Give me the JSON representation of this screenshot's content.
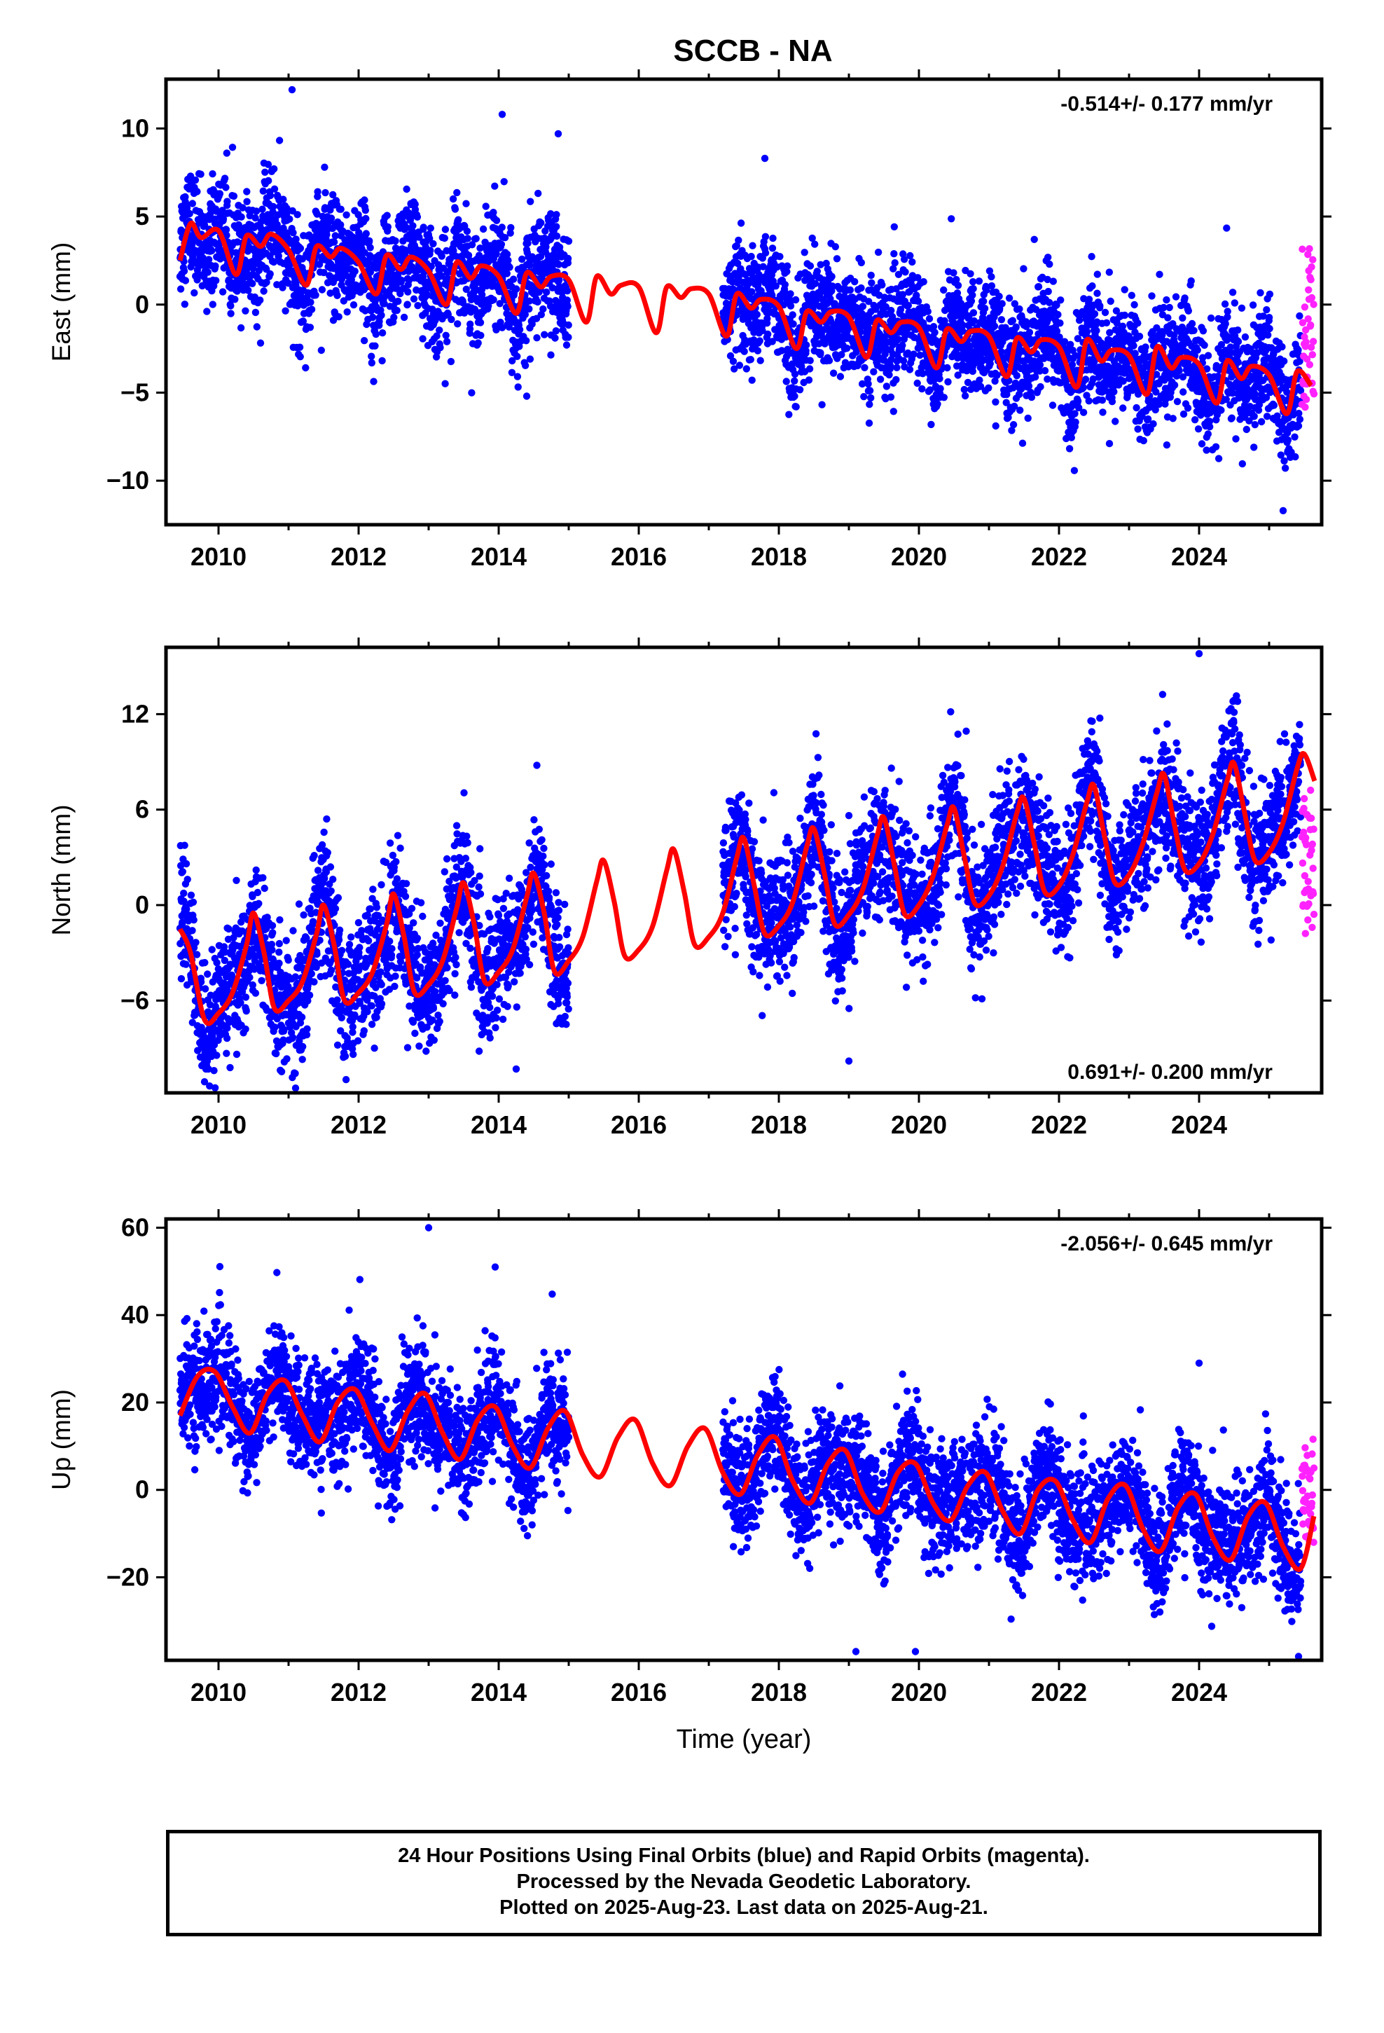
{
  "page": {
    "title": "SCCB - NA"
  },
  "colors": {
    "final_orbits": "#0000ff",
    "rapid_orbits": "#ff22ff",
    "model_fit": "#ff0000",
    "frame": "#000000"
  },
  "xaxis": {
    "label": "Time (year)",
    "ticks": [
      "2010",
      "2012",
      "2014",
      "2016",
      "2018",
      "2020",
      "2022",
      "2024"
    ],
    "range": [
      2009.25,
      2025.75
    ]
  },
  "caption": {
    "line1": "24 Hour Positions Using Final Orbits (blue) and Rapid Orbits (magenta).",
    "line2": "Processed by the Nevada Geodetic Laboratory.",
    "line3": "Plotted on 2025-Aug-23. Last data on 2025-Aug-21."
  },
  "chart_data": [
    {
      "type": "scatter",
      "ylabel": "East (mm)",
      "rate_text": "-0.514+/- 0.177 mm/yr",
      "rate_position": "top-right",
      "ylim": [
        -12.5,
        12.8
      ],
      "yticks": [
        -10,
        -5,
        0,
        5,
        10
      ],
      "gaps": [
        [
          2015.0,
          2017.2
        ]
      ],
      "model": {
        "name": "fit",
        "x": [
          2009.45,
          2009.6,
          2009.75,
          2010.0,
          2010.25,
          2010.4,
          2010.6,
          2010.75,
          2011.0,
          2011.25,
          2011.4,
          2011.6,
          2011.75,
          2012.0,
          2012.25,
          2012.4,
          2012.6,
          2012.75,
          2013.0,
          2013.25,
          2013.4,
          2013.6,
          2013.75,
          2014.0,
          2014.25,
          2014.4,
          2014.6,
          2014.75,
          2015.0,
          2015.25,
          2015.4,
          2015.6,
          2015.75,
          2016.0,
          2016.25,
          2016.4,
          2016.6,
          2016.75,
          2017.0,
          2017.25,
          2017.4,
          2017.6,
          2017.75,
          2018.0,
          2018.25,
          2018.4,
          2018.6,
          2018.75,
          2019.0,
          2019.25,
          2019.4,
          2019.6,
          2019.75,
          2020.0,
          2020.25,
          2020.4,
          2020.6,
          2020.75,
          2021.0,
          2021.25,
          2021.4,
          2021.6,
          2021.75,
          2022.0,
          2022.25,
          2022.4,
          2022.6,
          2022.75,
          2023.0,
          2023.25,
          2023.4,
          2023.6,
          2023.75,
          2024.0,
          2024.25,
          2024.4,
          2024.6,
          2024.75,
          2025.0,
          2025.25,
          2025.4,
          2025.6
        ],
        "y": [
          2.5,
          4.6,
          3.8,
          4.2,
          1.7,
          3.9,
          3.3,
          4.0,
          3.1,
          1.1,
          3.3,
          2.7,
          3.2,
          2.4,
          0.6,
          2.8,
          2.0,
          2.7,
          1.9,
          0.0,
          2.4,
          1.5,
          2.2,
          1.6,
          -0.5,
          1.8,
          1.0,
          1.6,
          1.4,
          -1.0,
          1.6,
          0.6,
          1.1,
          1.0,
          -1.6,
          1.0,
          0.4,
          0.9,
          0.6,
          -1.8,
          0.6,
          -0.2,
          0.3,
          -0.1,
          -2.5,
          -0.4,
          -1.0,
          -0.4,
          -0.7,
          -3.0,
          -0.9,
          -1.6,
          -1.0,
          -1.3,
          -3.6,
          -1.4,
          -2.1,
          -1.5,
          -1.8,
          -4.1,
          -1.9,
          -2.7,
          -2.0,
          -2.4,
          -4.7,
          -2.0,
          -3.2,
          -2.6,
          -2.9,
          -5.1,
          -2.4,
          -3.6,
          -3.0,
          -3.4,
          -5.6,
          -3.2,
          -4.2,
          -3.5,
          -4.0,
          -6.2,
          -3.8,
          -4.6
        ]
      },
      "observations": {
        "name": "daily positions",
        "x_range": [
          2009.45,
          2025.45
        ],
        "trend_mm_per_yr": -0.514,
        "scatter_mm": 1.6,
        "notable": [
          {
            "x": 2011.05,
            "y": 12.2
          },
          {
            "x": 2014.05,
            "y": 10.8
          },
          {
            "x": 2014.85,
            "y": 9.7
          },
          {
            "x": 2017.8,
            "y": 8.3
          },
          {
            "x": 2014.4,
            "y": -5.2
          },
          {
            "x": 2025.2,
            "y": -11.7
          }
        ]
      },
      "rapid": {
        "name": "rapid orbits",
        "x_range": [
          2025.47,
          2025.64
        ],
        "y_range": [
          -6.0,
          3.3
        ]
      }
    },
    {
      "type": "scatter",
      "ylabel": "North (mm)",
      "rate_text": "0.691+/- 0.200 mm/yr",
      "rate_position": "bottom-right",
      "ylim": [
        -11.8,
        16.2
      ],
      "yticks": [
        -6,
        0,
        6,
        12
      ],
      "gaps": [
        [
          2015.0,
          2017.2
        ]
      ],
      "model": {
        "name": "fit",
        "x": [
          2009.45,
          2009.6,
          2009.8,
          2010.0,
          2010.2,
          2010.4,
          2010.5,
          2010.65,
          2010.8,
          2011.0,
          2011.2,
          2011.4,
          2011.5,
          2011.65,
          2011.8,
          2012.0,
          2012.2,
          2012.4,
          2012.5,
          2012.65,
          2012.8,
          2013.0,
          2013.2,
          2013.4,
          2013.5,
          2013.65,
          2013.8,
          2014.0,
          2014.2,
          2014.4,
          2014.5,
          2014.65,
          2014.8,
          2015.0,
          2015.2,
          2015.4,
          2015.5,
          2015.65,
          2015.8,
          2016.0,
          2016.2,
          2016.4,
          2016.5,
          2016.65,
          2016.8,
          2017.0,
          2017.2,
          2017.4,
          2017.5,
          2017.65,
          2017.8,
          2018.0,
          2018.2,
          2018.4,
          2018.5,
          2018.65,
          2018.8,
          2019.0,
          2019.2,
          2019.4,
          2019.5,
          2019.65,
          2019.8,
          2020.0,
          2020.2,
          2020.4,
          2020.5,
          2020.65,
          2020.8,
          2021.0,
          2021.2,
          2021.4,
          2021.5,
          2021.65,
          2021.8,
          2022.0,
          2022.2,
          2022.4,
          2022.5,
          2022.65,
          2022.8,
          2023.0,
          2023.2,
          2023.4,
          2023.5,
          2023.65,
          2023.8,
          2024.0,
          2024.2,
          2024.4,
          2024.5,
          2024.65,
          2024.8,
          2025.0,
          2025.2,
          2025.4,
          2025.5,
          2025.65
        ],
        "y": [
          -1.5,
          -3.0,
          -7.2,
          -6.8,
          -5.5,
          -2.5,
          -0.5,
          -3.0,
          -6.5,
          -6.0,
          -4.8,
          -1.8,
          0.0,
          -2.5,
          -6.0,
          -5.5,
          -4.2,
          -1.2,
          0.7,
          -2.0,
          -5.5,
          -5.0,
          -3.5,
          -0.2,
          1.4,
          -1.2,
          -4.8,
          -4.2,
          -2.8,
          0.5,
          2.0,
          -0.5,
          -4.2,
          -3.5,
          -2.0,
          1.5,
          2.8,
          0.2,
          -3.2,
          -2.8,
          -1.3,
          2.2,
          3.5,
          0.8,
          -2.5,
          -2.0,
          -0.5,
          3.0,
          4.2,
          1.2,
          -1.8,
          -1.3,
          0.2,
          3.7,
          4.8,
          2.0,
          -1.2,
          -0.6,
          1.0,
          4.3,
          5.5,
          2.5,
          -0.6,
          0.0,
          1.8,
          5.0,
          6.1,
          3.0,
          0.1,
          0.6,
          2.5,
          5.8,
          6.7,
          3.8,
          0.8,
          1.2,
          3.2,
          6.5,
          7.5,
          4.3,
          1.4,
          1.9,
          3.9,
          7.1,
          8.2,
          5.0,
          2.2,
          2.6,
          4.5,
          7.8,
          8.9,
          5.8,
          2.8,
          3.3,
          5.2,
          8.6,
          9.5,
          7.8
        ]
      },
      "observations": {
        "name": "daily positions",
        "x_range": [
          2009.45,
          2025.45
        ],
        "trend_mm_per_yr": 0.691,
        "scatter_mm": 2.0,
        "notable": [
          {
            "x": 2024.0,
            "y": 15.8
          },
          {
            "x": 2011.1,
            "y": -11.5
          },
          {
            "x": 2014.25,
            "y": -10.3
          },
          {
            "x": 2019.0,
            "y": -9.8
          },
          {
            "x": 2024.55,
            "y": 12.8
          }
        ]
      },
      "rapid": {
        "name": "rapid orbits",
        "x_range": [
          2025.47,
          2025.64
        ],
        "y_range": [
          -2.0,
          7.4
        ]
      }
    },
    {
      "type": "scatter",
      "ylabel": "Up (mm)",
      "rate_text": "-2.056+/- 0.645 mm/yr",
      "rate_position": "top-right",
      "ylim": [
        -39,
        62
      ],
      "yticks": [
        -20,
        0,
        20,
        40,
        60
      ],
      "gaps": [
        [
          2015.0,
          2017.2
        ]
      ],
      "model": {
        "name": "fit",
        "x": [
          2009.45,
          2009.7,
          2009.95,
          2010.2,
          2010.45,
          2010.7,
          2010.95,
          2011.2,
          2011.45,
          2011.7,
          2011.95,
          2012.2,
          2012.45,
          2012.7,
          2012.95,
          2013.2,
          2013.45,
          2013.7,
          2013.95,
          2014.2,
          2014.45,
          2014.7,
          2014.95,
          2015.2,
          2015.45,
          2015.7,
          2015.95,
          2016.2,
          2016.45,
          2016.7,
          2016.95,
          2017.2,
          2017.45,
          2017.7,
          2017.95,
          2018.2,
          2018.45,
          2018.7,
          2018.95,
          2019.2,
          2019.45,
          2019.7,
          2019.95,
          2020.2,
          2020.45,
          2020.7,
          2020.95,
          2021.2,
          2021.45,
          2021.7,
          2021.95,
          2022.2,
          2022.45,
          2022.7,
          2022.95,
          2023.2,
          2023.45,
          2023.7,
          2023.95,
          2024.2,
          2024.45,
          2024.7,
          2024.95,
          2025.2,
          2025.45,
          2025.64
        ],
        "y": [
          17,
          26,
          27,
          19,
          13,
          22,
          25,
          17,
          11,
          20,
          23,
          15,
          9,
          18,
          22,
          13,
          7,
          16,
          19,
          10,
          5,
          14,
          18,
          8,
          3,
          12,
          16,
          6,
          1,
          10,
          14,
          4,
          -1,
          8,
          12,
          2,
          -3,
          6,
          9,
          -1,
          -5,
          4,
          6,
          -3,
          -7,
          1,
          4,
          -5,
          -10,
          0,
          2,
          -7,
          -12,
          -2,
          1,
          -9,
          -14,
          -4,
          -1,
          -11,
          -16,
          -6,
          -3,
          -13,
          -18,
          -6
        ]
      },
      "observations": {
        "name": "daily positions",
        "x_range": [
          2009.45,
          2025.45
        ],
        "trend_mm_per_yr": -2.056,
        "scatter_mm": 6.5,
        "notable": [
          {
            "x": 2013.0,
            "y": 60
          },
          {
            "x": 2013.95,
            "y": 51
          },
          {
            "x": 2019.1,
            "y": -37
          },
          {
            "x": 2019.95,
            "y": -37
          },
          {
            "x": 2024.0,
            "y": 29
          }
        ]
      },
      "rapid": {
        "name": "rapid orbits",
        "x_range": [
          2025.47,
          2025.64
        ],
        "y_range": [
          -12.0,
          12.0
        ]
      }
    }
  ]
}
